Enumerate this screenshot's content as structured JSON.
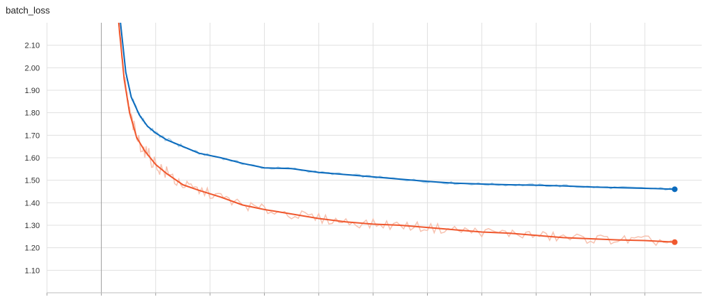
{
  "chart_data": {
    "type": "line",
    "title": "batch_loss",
    "xlabel": "",
    "ylabel": "",
    "ylim": [
      1.0,
      2.2
    ],
    "xlim": [
      0,
      11
    ],
    "grid": true,
    "y_ticks": [
      "1.10",
      "1.20",
      "1.30",
      "1.40",
      "1.50",
      "1.60",
      "1.70",
      "1.80",
      "1.90",
      "2.00",
      "2.10"
    ],
    "series": [
      {
        "color": "#0b6bbd",
        "raw_color": "#a9cfe9",
        "points": [
          [
            1.33,
            2.25
          ],
          [
            1.45,
            1.98
          ],
          [
            1.55,
            1.87
          ],
          [
            1.7,
            1.79
          ],
          [
            1.85,
            1.74
          ],
          [
            2.0,
            1.71
          ],
          [
            2.2,
            1.68
          ],
          [
            2.5,
            1.65
          ],
          [
            2.8,
            1.62
          ],
          [
            3.2,
            1.6
          ],
          [
            3.6,
            1.575
          ],
          [
            4.0,
            1.555
          ],
          [
            4.5,
            1.552
          ],
          [
            5.0,
            1.535
          ],
          [
            5.5,
            1.525
          ],
          [
            6.0,
            1.515
          ],
          [
            6.5,
            1.505
          ],
          [
            7.0,
            1.495
          ],
          [
            7.5,
            1.487
          ],
          [
            8.0,
            1.483
          ],
          [
            8.5,
            1.48
          ],
          [
            9.0,
            1.478
          ],
          [
            9.5,
            1.475
          ],
          [
            10.0,
            1.47
          ],
          [
            10.5,
            1.467
          ],
          [
            11.2,
            1.463
          ],
          [
            11.55,
            1.46
          ]
        ]
      },
      {
        "color": "#f0582e",
        "raw_color": "#f7c2b0",
        "points": [
          [
            1.3,
            2.25
          ],
          [
            1.42,
            1.95
          ],
          [
            1.52,
            1.8
          ],
          [
            1.65,
            1.69
          ],
          [
            1.8,
            1.63
          ],
          [
            2.0,
            1.57
          ],
          [
            2.2,
            1.53
          ],
          [
            2.5,
            1.48
          ],
          [
            2.8,
            1.455
          ],
          [
            3.2,
            1.425
          ],
          [
            3.6,
            1.39
          ],
          [
            4.0,
            1.37
          ],
          [
            4.5,
            1.35
          ],
          [
            5.0,
            1.33
          ],
          [
            5.5,
            1.315
          ],
          [
            6.0,
            1.305
          ],
          [
            6.5,
            1.3
          ],
          [
            7.0,
            1.29
          ],
          [
            7.5,
            1.28
          ],
          [
            8.0,
            1.27
          ],
          [
            8.5,
            1.265
          ],
          [
            9.0,
            1.255
          ],
          [
            9.5,
            1.245
          ],
          [
            10.0,
            1.24
          ],
          [
            10.5,
            1.235
          ],
          [
            11.0,
            1.232
          ],
          [
            11.55,
            1.225
          ]
        ]
      }
    ]
  }
}
